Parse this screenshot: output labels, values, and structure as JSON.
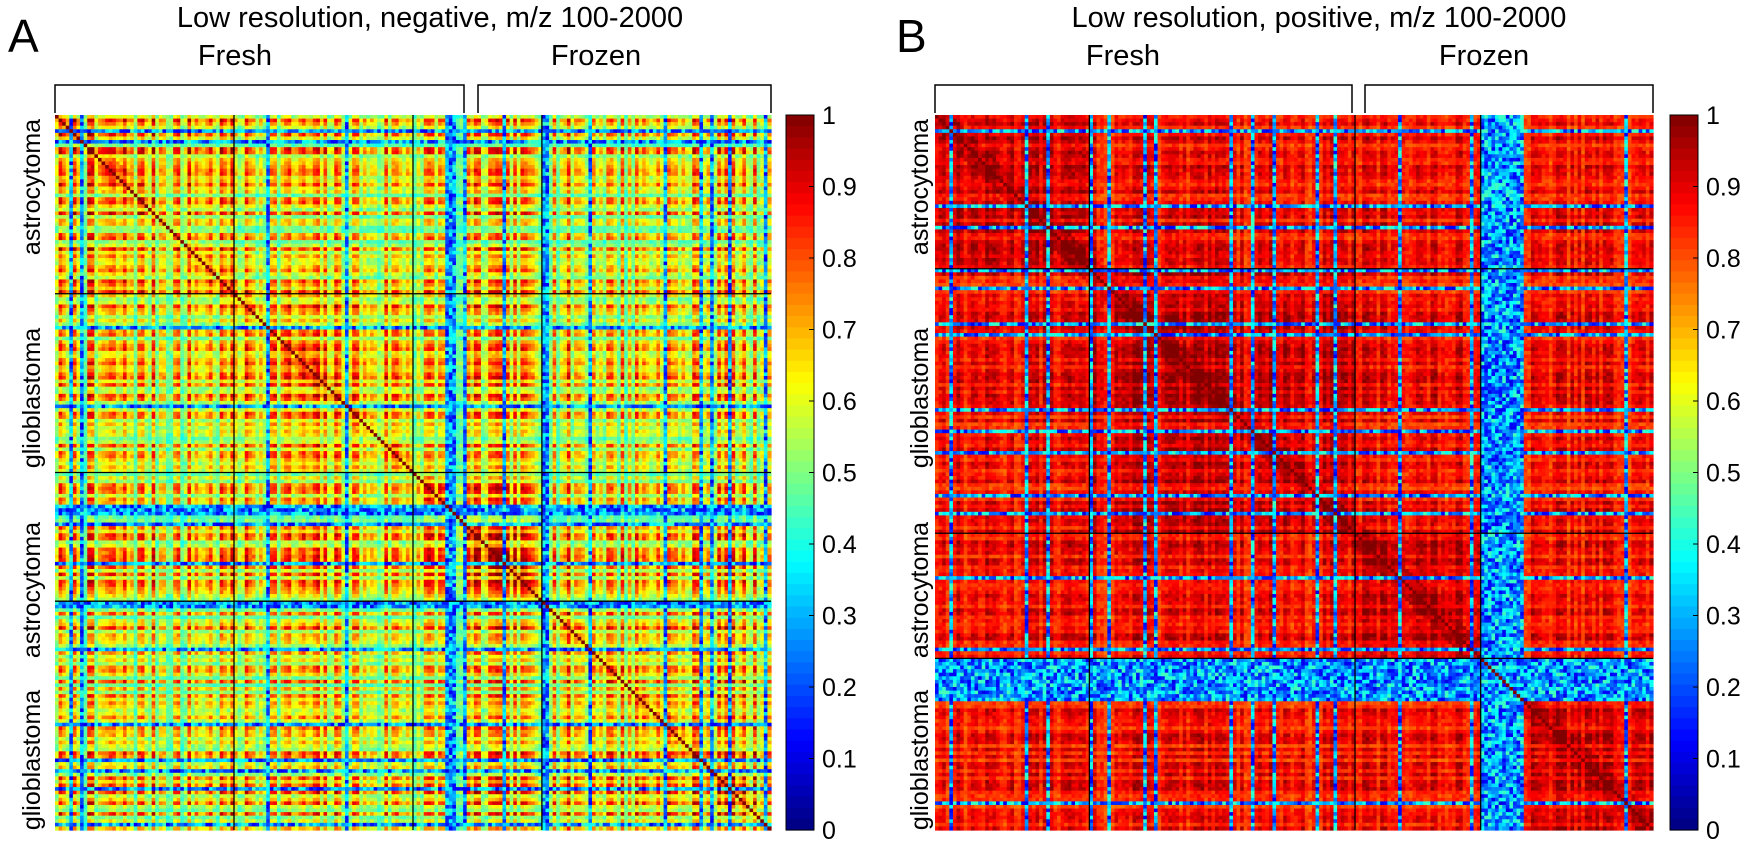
{
  "colors": {
    "colormap": "jet",
    "divider": "#000000",
    "bracket": "#000000"
  },
  "colorbar": {
    "range": [
      0,
      1
    ],
    "ticks": [
      "0",
      "0.1",
      "0.2",
      "0.3",
      "0.4",
      "0.5",
      "0.6",
      "0.7",
      "0.8",
      "0.9",
      "1"
    ]
  },
  "chart_data": [
    {
      "type": "heatmap",
      "panel": "A",
      "title": "Low resolution, negative, m/z 100-2000",
      "column_groups": [
        "Fresh",
        "Frozen"
      ],
      "row_labels": [
        "astrocytoma",
        "glioblastoma",
        "astrocytoma",
        "glioblastoma"
      ],
      "n_samples": 200,
      "row_block_fractions": [
        0.25,
        0.25,
        0.18,
        0.32
      ],
      "column_block_fractions": [
        0.575,
        0.425
      ],
      "value_range": [
        0,
        1
      ],
      "diagonal_value": 1,
      "typical_off_diagonal_range": [
        0.3,
        0.95
      ],
      "low_similarity_columns_fraction": [
        0.55,
        0.57
      ],
      "low_similarity_rows_fraction": [
        0.545,
        0.555
      ]
    },
    {
      "type": "heatmap",
      "panel": "B",
      "title": "Low resolution, positive, m/z 100-2000",
      "column_groups": [
        "Fresh",
        "Frozen"
      ],
      "row_labels": [
        "astrocytoma",
        "glioblastoma",
        "astrocytoma",
        "glioblastoma"
      ],
      "n_samples": 200,
      "row_block_fractions": [
        0.215,
        0.37,
        0.175,
        0.24
      ],
      "column_block_fractions": [
        0.59,
        0.41
      ],
      "value_range": [
        0,
        1
      ],
      "diagonal_value": 1,
      "typical_off_diagonal_range": [
        0.75,
        0.98
      ],
      "low_similarity_columns_fraction": [
        0.76,
        0.82
      ],
      "low_similarity_rows_fraction": [
        0.765,
        0.83
      ]
    }
  ]
}
